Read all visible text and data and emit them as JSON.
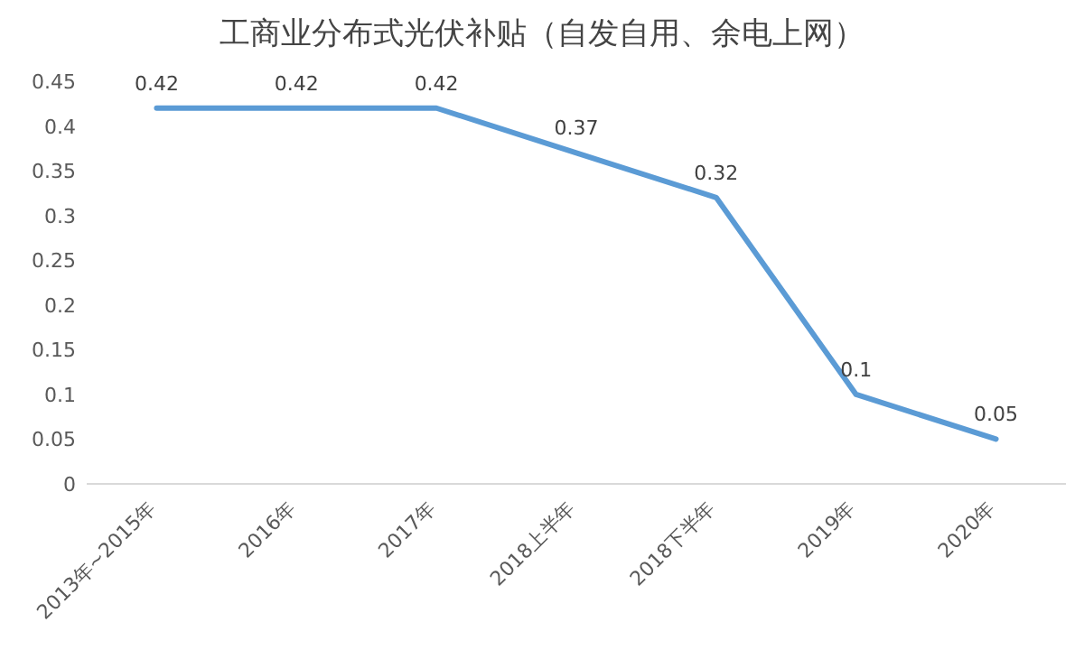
{
  "chart_data": {
    "type": "line",
    "title": "工商业分布式光伏补贴（自发自用、余电上网）",
    "categories": [
      "2013年~2015年",
      "2016年",
      "2017年",
      "2018上半年",
      "2018下半年",
      "2019年",
      "2020年"
    ],
    "values": [
      0.42,
      0.42,
      0.42,
      0.37,
      0.32,
      0.1,
      0.05
    ],
    "color": "#5b9bd5",
    "ylim": [
      0,
      0.45
    ],
    "yticks": [
      0,
      0.05,
      0.1,
      0.15,
      0.2,
      0.25,
      0.3,
      0.35,
      0.4,
      0.45
    ],
    "data_labels": true
  }
}
